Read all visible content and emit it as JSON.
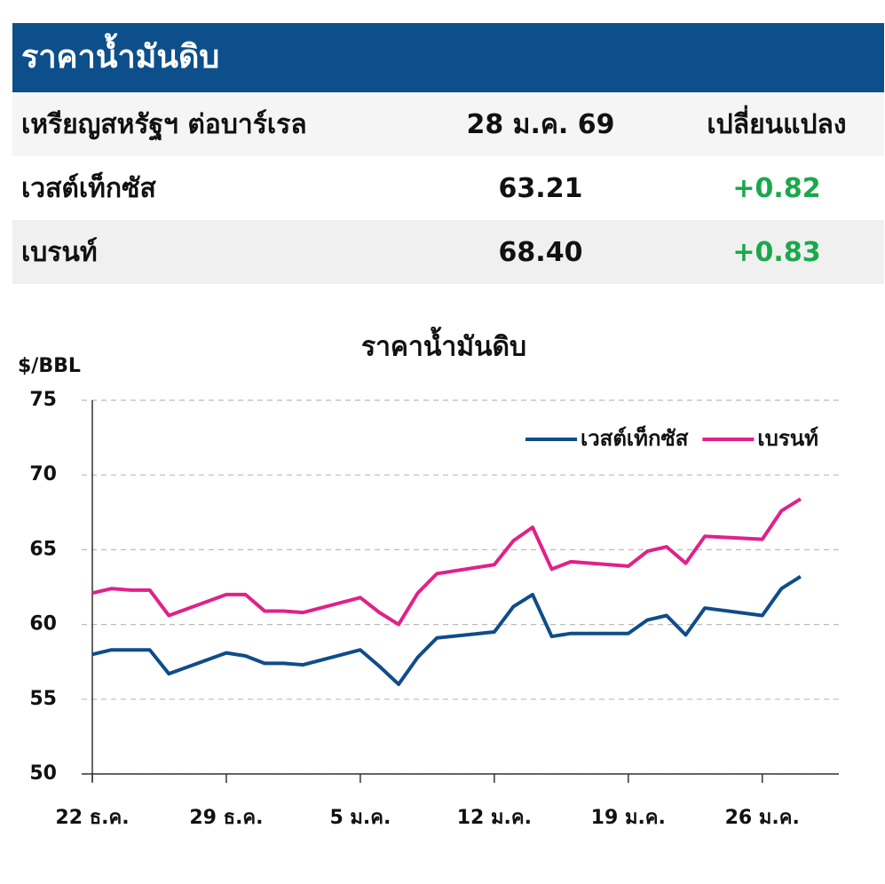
{
  "table": {
    "title": "ราคาน้ำมันดิบ",
    "header": [
      "เหรียญสหรัฐฯ ต่อบาร์เรล",
      "28 ม.ค. 69",
      "เปลี่ยนแปลง"
    ],
    "rows": [
      [
        "เวสต์เท็กซัส",
        "63.21",
        "+0.82"
      ],
      [
        "เบรนท์",
        "68.40",
        "+0.83"
      ]
    ]
  },
  "chart_data": {
    "type": "line",
    "title": "ราคาน้ำมันดิบ",
    "y_label": "$/BBL",
    "x": [
      0,
      1,
      2,
      3,
      4,
      7,
      8,
      9,
      10,
      11,
      14,
      15,
      16,
      17,
      18,
      21,
      22,
      23,
      24,
      25,
      28,
      29,
      30,
      31,
      32,
      35,
      36,
      37
    ],
    "xlim": [
      0,
      39
    ],
    "xticks": [
      {
        "value": 0,
        "label": "22 ธ.ค."
      },
      {
        "value": 7,
        "label": "29 ธ.ค."
      },
      {
        "value": 14,
        "label": "5 ม.ค."
      },
      {
        "value": 21,
        "label": "12 ม.ค."
      },
      {
        "value": 28,
        "label": "19 ม.ค."
      },
      {
        "value": 35,
        "label": "26 ม.ค."
      }
    ],
    "ylim": [
      50,
      75
    ],
    "yticks": [
      50,
      55,
      60,
      65,
      70,
      75
    ],
    "grid": true,
    "legend": "upper right",
    "series": [
      {
        "name": "เวสต์เท็กซัส",
        "color": "#0f4c8a",
        "values": [
          58.0,
          58.3,
          58.3,
          58.3,
          56.7,
          58.1,
          57.9,
          57.4,
          57.4,
          57.3,
          58.3,
          57.2,
          56.0,
          57.8,
          59.1,
          59.5,
          61.2,
          62.0,
          59.2,
          59.4,
          59.4,
          60.3,
          60.6,
          59.3,
          61.1,
          60.6,
          62.4,
          63.21
        ]
      },
      {
        "name": "เบรนท์",
        "color": "#e0218a",
        "values": [
          62.1,
          62.4,
          62.3,
          62.3,
          60.6,
          62.0,
          62.0,
          60.9,
          60.9,
          60.8,
          61.8,
          60.8,
          60.0,
          62.1,
          63.4,
          64.0,
          65.6,
          66.5,
          63.7,
          64.2,
          63.9,
          64.9,
          65.2,
          64.1,
          65.9,
          65.7,
          67.6,
          68.4
        ]
      }
    ]
  }
}
